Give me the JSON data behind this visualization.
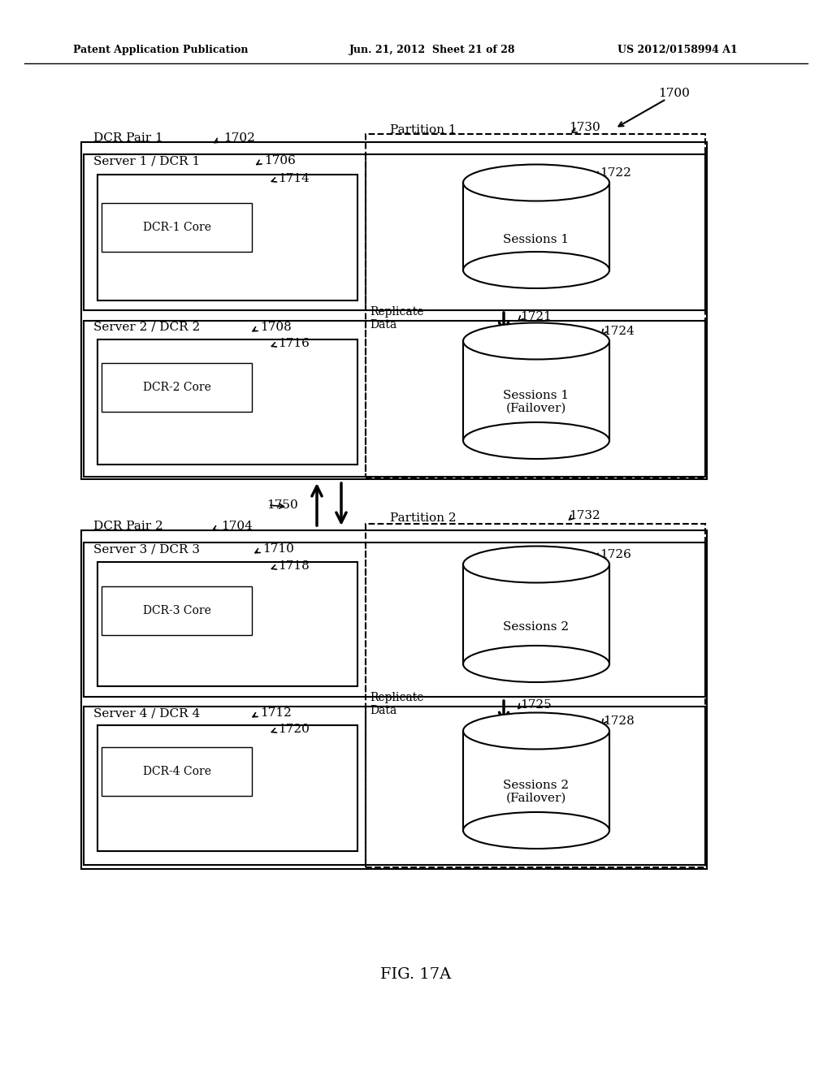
{
  "header_left": "Patent Application Publication",
  "header_mid": "Jun. 21, 2012  Sheet 21 of 28",
  "header_right": "US 2012/0158994 A1",
  "fig_label": "FIG. 17A",
  "ref_1700": "1700",
  "ref_1702": "1702",
  "ref_1704": "1704",
  "ref_1706": "1706",
  "ref_1708": "1708",
  "ref_1710": "1710",
  "ref_1712": "1712",
  "ref_1714": "1714",
  "ref_1716": "1716",
  "ref_1718": "1718",
  "ref_1720": "1720",
  "ref_1721": "1721",
  "ref_1722": "1722",
  "ref_1724": "1724",
  "ref_1725": "1725",
  "ref_1726": "1726",
  "ref_1728": "1728",
  "ref_1730": "1730",
  "ref_1732": "1732",
  "ref_1750": "1750",
  "label_dcr_pair1": "DCR Pair 1",
  "label_dcr_pair2": "DCR Pair 2",
  "label_partition1": "Partition 1",
  "label_partition2": "Partition 2",
  "label_server1": "Server 1 / DCR 1",
  "label_server2": "Server 2 / DCR 2",
  "label_server3": "Server 3 / DCR 3",
  "label_server4": "Server 4 / DCR 4",
  "label_dcr1core": "DCR-1 Core",
  "label_dcr2core": "DCR-2 Core",
  "label_dcr3core": "DCR-3 Core",
  "label_dcr4core": "DCR-4 Core",
  "label_sessions1": "Sessions 1",
  "label_sessions1f": "Sessions 1\n(Failover)",
  "label_sessions2": "Sessions 2",
  "label_sessions2f": "Sessions 2\n(Failover)",
  "label_replicate1": "Replicate\nData",
  "label_replicate2": "Replicate\nData",
  "bg_color": "#ffffff",
  "line_color": "#000000"
}
